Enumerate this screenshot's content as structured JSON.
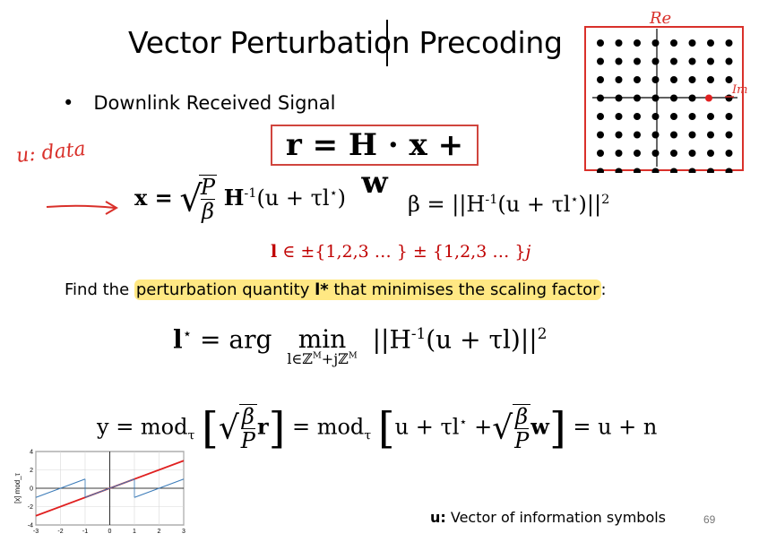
{
  "slide": {
    "title": "Vector Perturbation Precoding",
    "bullet": "Downlink Received Signal",
    "main_equation": "r = H · x + w",
    "eq_x_lhs": "x =",
    "eq_x_frac_num": "P",
    "eq_x_frac_den": "β",
    "eq_x_rhs": "H",
    "eq_x_rhs2": "(u + τl",
    "eq_x_end": ")",
    "eq_beta": "β = ||H",
    "eq_beta_rhs": "(u + τl",
    "eq_beta_end": ")||",
    "lset_l": "l",
    "lset_rest": " ∈ ±{1,2,3 … } ± {1,2,3 … }",
    "lset_j": "j",
    "find_pre": "Find the ",
    "find_hl1": "perturbation quantity ",
    "find_l": "l*",
    "find_hl2": " that minimises the scaling factor",
    "find_colon": ":",
    "argmin_lhs": "l",
    "argmin_eq": " = arg",
    "argmin_min": "min",
    "argmin_sub": "l∈ℤ",
    "argmin_sub2": "+jℤ",
    "argmin_M": "M",
    "argmin_rhs": "||H",
    "argmin_rhs2": "(u + τl)||",
    "y_lhs": "y = mod",
    "y_tau": "τ",
    "y_frac_num": "β",
    "y_frac_den": "P",
    "y_r": "r",
    "y_mid": "= mod",
    "y_inner": "u + τl",
    "y_plus": " +",
    "y_w": "w",
    "y_end": "= u + n",
    "note_bold": "u:",
    "note_text": "  Vector of information symbols",
    "page_number": "69",
    "handwriting": "u: data",
    "sup_inv": "-1",
    "sup_star": "⋆",
    "sup_two": "2"
  },
  "constellation": {
    "label_re": "Re",
    "label_im": "Im",
    "grid_size": 8,
    "highlight": [
      6,
      3
    ],
    "highlight_color": "#e02020"
  },
  "chart_data": {
    "type": "line",
    "title": "",
    "xlabel": "",
    "ylabel": "[x] mod_τ",
    "xlim": [
      -3,
      3
    ],
    "ylim": [
      -4,
      4
    ],
    "xticks": [
      "-3",
      "-2",
      "-1",
      "0",
      "1",
      "2",
      "3"
    ],
    "yticks": [
      "4",
      "2",
      "0",
      "-2",
      "-4"
    ],
    "grid": true,
    "series": [
      {
        "color": "#e02020",
        "x": [
          -3,
          3
        ],
        "y": [
          -3,
          3
        ]
      },
      {
        "color": "#3a7ab8",
        "sawtooth_period": 2,
        "x": [
          -3,
          3
        ],
        "y": [
          -1,
          1
        ]
      }
    ]
  }
}
